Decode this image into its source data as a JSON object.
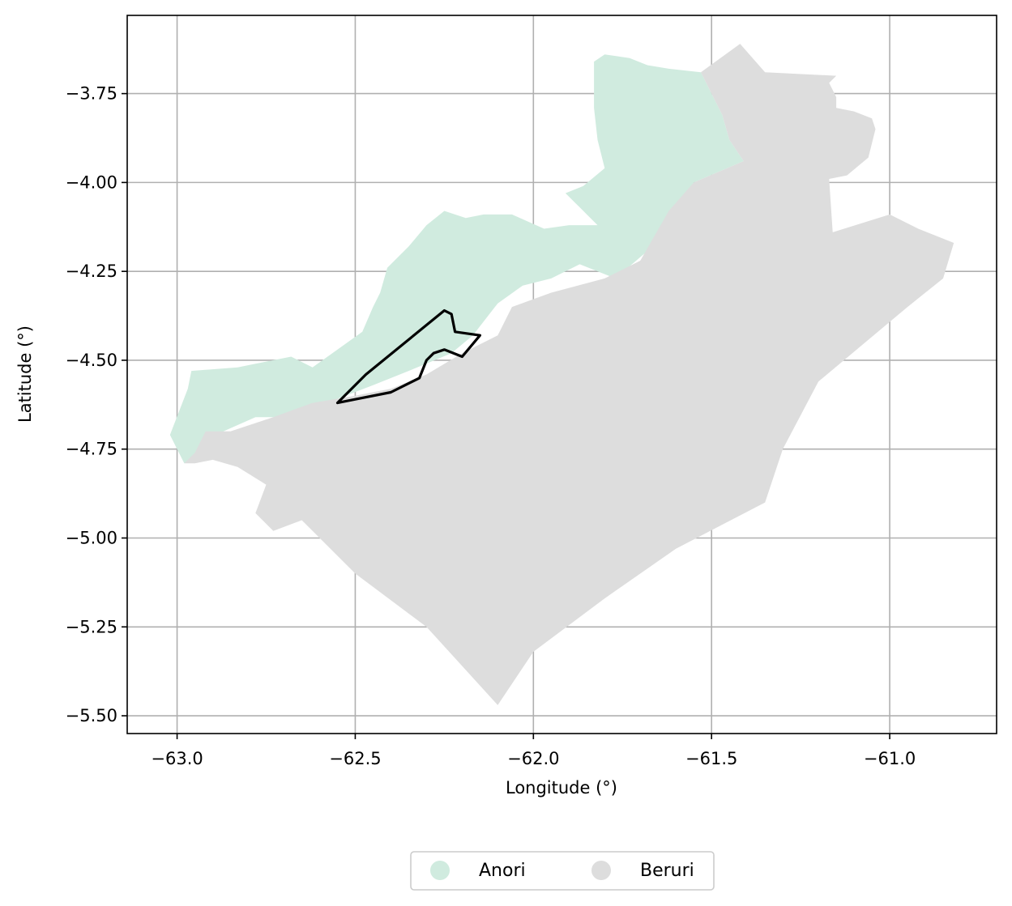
{
  "chart_data": {
    "type": "map",
    "xlabel": "Longitude (°)",
    "ylabel": "Latitude (°)",
    "xlim": [
      -63.14,
      -60.7
    ],
    "ylim": [
      -5.55,
      -3.53
    ],
    "xticks": [
      -63.0,
      -62.5,
      -62.0,
      -61.5,
      -61.0
    ],
    "xtick_labels": [
      "−63.0",
      "−62.5",
      "−62.0",
      "−61.5",
      "−61.0"
    ],
    "yticks": [
      -3.75,
      -4.0,
      -4.25,
      -4.5,
      -4.75,
      -5.0,
      -5.25,
      -5.5
    ],
    "ytick_labels": [
      "−3.75",
      "−4.00",
      "−4.25",
      "−4.50",
      "−4.75",
      "−5.00",
      "−5.25",
      "−5.50"
    ],
    "grid": true,
    "legend": {
      "placement": "bottom-center, below axes",
      "entries": [
        {
          "name": "Anori",
          "color": "#d0ebdf"
        },
        {
          "name": "Beruri",
          "color": "#dddddd"
        }
      ]
    },
    "regions": [
      {
        "name": "Anori",
        "color": "#d0ebdf",
        "coords": [
          [
            -62.98,
            -4.79
          ],
          [
            -63.02,
            -4.71
          ],
          [
            -62.97,
            -4.58
          ],
          [
            -62.96,
            -4.53
          ],
          [
            -62.83,
            -4.52
          ],
          [
            -62.78,
            -4.51
          ],
          [
            -62.68,
            -4.49
          ],
          [
            -62.62,
            -4.52
          ],
          [
            -62.55,
            -4.47
          ],
          [
            -62.48,
            -4.42
          ],
          [
            -62.45,
            -4.35
          ],
          [
            -62.43,
            -4.31
          ],
          [
            -62.41,
            -4.24
          ],
          [
            -62.35,
            -4.18
          ],
          [
            -62.3,
            -4.12
          ],
          [
            -62.25,
            -4.08
          ],
          [
            -62.19,
            -4.1
          ],
          [
            -62.14,
            -4.09
          ],
          [
            -62.06,
            -4.09
          ],
          [
            -61.97,
            -4.13
          ],
          [
            -61.9,
            -4.12
          ],
          [
            -61.82,
            -4.12
          ],
          [
            -61.88,
            -4.06
          ],
          [
            -61.91,
            -4.03
          ],
          [
            -61.86,
            -4.01
          ],
          [
            -61.8,
            -3.96
          ],
          [
            -61.82,
            -3.88
          ],
          [
            -61.83,
            -3.79
          ],
          [
            -61.83,
            -3.66
          ],
          [
            -61.8,
            -3.64
          ],
          [
            -61.73,
            -3.65
          ],
          [
            -61.68,
            -3.67
          ],
          [
            -61.62,
            -3.68
          ],
          [
            -61.53,
            -3.69
          ],
          [
            -61.47,
            -3.81
          ],
          [
            -61.45,
            -3.88
          ],
          [
            -61.41,
            -3.94
          ],
          [
            -61.55,
            -4.0
          ],
          [
            -61.63,
            -4.15
          ],
          [
            -61.7,
            -4.21
          ],
          [
            -61.77,
            -4.27
          ],
          [
            -61.87,
            -4.23
          ],
          [
            -61.95,
            -4.27
          ],
          [
            -62.03,
            -4.29
          ],
          [
            -62.1,
            -4.34
          ],
          [
            -62.17,
            -4.43
          ],
          [
            -62.23,
            -4.48
          ],
          [
            -62.35,
            -4.53
          ],
          [
            -62.45,
            -4.57
          ],
          [
            -62.58,
            -4.62
          ],
          [
            -62.68,
            -4.66
          ],
          [
            -62.78,
            -4.66
          ],
          [
            -62.87,
            -4.7
          ]
        ]
      },
      {
        "name": "Beruri",
        "color": "#dddddd",
        "coords": [
          [
            -62.98,
            -4.79
          ],
          [
            -62.95,
            -4.76
          ],
          [
            -62.92,
            -4.7
          ],
          [
            -62.85,
            -4.7
          ],
          [
            -62.73,
            -4.66
          ],
          [
            -62.62,
            -4.62
          ],
          [
            -62.5,
            -4.6
          ],
          [
            -62.4,
            -4.58
          ],
          [
            -62.3,
            -4.54
          ],
          [
            -62.2,
            -4.48
          ],
          [
            -62.1,
            -4.43
          ],
          [
            -62.06,
            -4.35
          ],
          [
            -61.95,
            -4.31
          ],
          [
            -61.8,
            -4.27
          ],
          [
            -61.7,
            -4.22
          ],
          [
            -61.62,
            -4.08
          ],
          [
            -61.55,
            -4.0
          ],
          [
            -61.41,
            -3.94
          ],
          [
            -61.45,
            -3.88
          ],
          [
            -61.47,
            -3.81
          ],
          [
            -61.53,
            -3.69
          ],
          [
            -61.42,
            -3.61
          ],
          [
            -61.35,
            -3.69
          ],
          [
            -61.15,
            -3.7
          ],
          [
            -61.17,
            -3.72
          ],
          [
            -61.15,
            -3.76
          ],
          [
            -61.15,
            -3.79
          ],
          [
            -61.1,
            -3.8
          ],
          [
            -61.05,
            -3.82
          ],
          [
            -61.04,
            -3.85
          ],
          [
            -61.06,
            -3.93
          ],
          [
            -61.12,
            -3.98
          ],
          [
            -61.17,
            -3.99
          ],
          [
            -61.16,
            -4.14
          ],
          [
            -61.0,
            -4.09
          ],
          [
            -60.92,
            -4.13
          ],
          [
            -60.82,
            -4.17
          ],
          [
            -60.85,
            -4.27
          ],
          [
            -60.95,
            -4.35
          ],
          [
            -61.2,
            -4.56
          ],
          [
            -61.3,
            -4.75
          ],
          [
            -61.35,
            -4.9
          ],
          [
            -61.6,
            -5.03
          ],
          [
            -61.8,
            -5.17
          ],
          [
            -62.0,
            -5.32
          ],
          [
            -62.1,
            -5.47
          ],
          [
            -62.3,
            -5.25
          ],
          [
            -62.5,
            -5.1
          ],
          [
            -62.65,
            -4.95
          ],
          [
            -62.73,
            -4.98
          ],
          [
            -62.78,
            -4.93
          ],
          [
            -62.75,
            -4.85
          ],
          [
            -62.83,
            -4.8
          ],
          [
            -62.9,
            -4.78
          ],
          [
            -62.95,
            -4.79
          ]
        ]
      }
    ],
    "outline": {
      "color": "#000000",
      "coords": [
        [
          -62.55,
          -4.62
        ],
        [
          -62.47,
          -4.54
        ],
        [
          -62.25,
          -4.36
        ],
        [
          -62.23,
          -4.37
        ],
        [
          -62.22,
          -4.42
        ],
        [
          -62.15,
          -4.43
        ],
        [
          -62.2,
          -4.49
        ],
        [
          -62.25,
          -4.47
        ],
        [
          -62.28,
          -4.48
        ],
        [
          -62.3,
          -4.5
        ],
        [
          -62.32,
          -4.55
        ],
        [
          -62.4,
          -4.59
        ],
        [
          -62.5,
          -4.61
        ]
      ]
    }
  }
}
